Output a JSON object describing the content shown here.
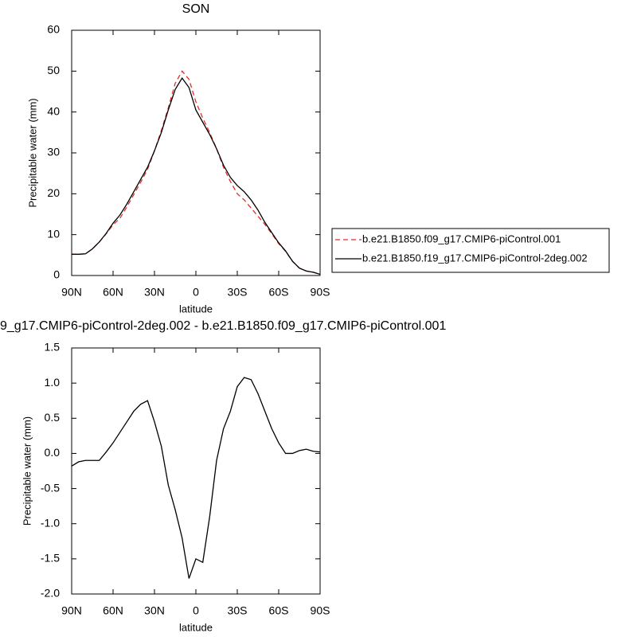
{
  "chart_data": [
    {
      "type": "line",
      "title": "SON",
      "x_label": "latitude",
      "y_label": "Precipitable water (mm)",
      "x": [
        90,
        85,
        80,
        75,
        70,
        65,
        60,
        55,
        50,
        45,
        40,
        35,
        30,
        25,
        20,
        15,
        10,
        5,
        0,
        -5,
        -10,
        -15,
        -20,
        -25,
        -30,
        -35,
        -40,
        -45,
        -50,
        -55,
        -60,
        -65,
        -70,
        -75,
        -80,
        -85,
        -90
      ],
      "series": [
        {
          "name": "b.e21.B1850.f09_g17.CMIP6-piControl.001",
          "color": "#e8282a",
          "line_style": "dashed",
          "values": [
            5.2,
            5.2,
            5.3,
            6.5,
            8.2,
            10.2,
            12.4,
            14.0,
            16.8,
            19.8,
            22.8,
            26.0,
            30.5,
            35.5,
            41.0,
            47.0,
            50.0,
            48.0,
            42.5,
            38.5,
            35.0,
            31.0,
            26.5,
            23.0,
            20.0,
            18.5,
            16.5,
            14.5,
            12.5,
            10.2,
            7.8,
            5.9,
            3.5,
            1.8,
            1.1,
            0.8,
            0.3
          ]
        },
        {
          "name": "b.e21.B1850.f19_g17.CMIP6-piControl-2deg.002",
          "color": "#000000",
          "line_style": "solid",
          "values": [
            5.2,
            5.2,
            5.3,
            6.5,
            8.2,
            10.3,
            12.8,
            14.8,
            17.5,
            20.5,
            23.5,
            26.5,
            30.5,
            35.0,
            40.5,
            45.5,
            48.3,
            46.0,
            40.5,
            37.5,
            34.5,
            31.0,
            27.0,
            24.0,
            22.0,
            20.5,
            18.5,
            16.0,
            13.0,
            10.5,
            8.0,
            6.0,
            3.5,
            1.8,
            1.1,
            0.8,
            0.3
          ]
        }
      ],
      "xlim": [
        90,
        -90
      ],
      "xticks": [
        {
          "value": 90,
          "label": "90N"
        },
        {
          "value": 60,
          "label": "60N"
        },
        {
          "value": 30,
          "label": "30N"
        },
        0,
        {
          "value": -30,
          "label": "30S"
        },
        {
          "value": -60,
          "label": "60S"
        },
        {
          "value": -90,
          "label": "90S"
        }
      ],
      "ylim": [
        0,
        60
      ],
      "yticks": [
        0,
        10,
        20,
        30,
        40,
        50,
        60
      ],
      "legend": "right"
    },
    {
      "type": "line",
      "title": "9_g17.CMIP6-piControl-2deg.002 - b.e21.B1850.f09_g17.CMIP6-piControl.001",
      "x_label": "latitude",
      "y_label": "Precipitable water (mm)",
      "x": [
        90,
        85,
        80,
        75,
        70,
        65,
        60,
        55,
        50,
        45,
        40,
        35,
        30,
        25,
        20,
        15,
        10,
        5,
        0,
        -5,
        -10,
        -15,
        -20,
        -25,
        -30,
        -35,
        -40,
        -45,
        -50,
        -55,
        -60,
        -65,
        -70,
        -75,
        -80,
        -85,
        -90
      ],
      "series": [
        {
          "color": "#000000",
          "line_style": "solid",
          "values": [
            -0.18,
            -0.12,
            -0.1,
            -0.1,
            -0.1,
            0.02,
            0.15,
            0.3,
            0.45,
            0.6,
            0.7,
            0.75,
            0.45,
            0.1,
            -0.45,
            -0.8,
            -1.2,
            -1.78,
            -1.5,
            -1.55,
            -0.9,
            -0.1,
            0.35,
            0.6,
            0.95,
            1.08,
            1.05,
            0.85,
            0.6,
            0.35,
            0.15,
            0.0,
            0.0,
            0.04,
            0.06,
            0.03,
            0.02
          ]
        }
      ],
      "xlim": [
        90,
        -90
      ],
      "xticks": [
        {
          "value": 90,
          "label": "90N"
        },
        {
          "value": 60,
          "label": "60N"
        },
        {
          "value": 30,
          "label": "30N"
        },
        0,
        {
          "value": -30,
          "label": "30S"
        },
        {
          "value": -60,
          "label": "60S"
        },
        {
          "value": -90,
          "label": "90S"
        }
      ],
      "ylim": [
        -2,
        1.5
      ],
      "yticks": [
        {
          "value": -2,
          "label": "-2.0"
        },
        {
          "value": -1.5,
          "label": "-1.5"
        },
        {
          "value": -1,
          "label": "-1.0"
        },
        {
          "value": -0.5,
          "label": "-0.5"
        },
        {
          "value": 0,
          "label": "0.0"
        },
        {
          "value": 0.5,
          "label": "0.5"
        },
        {
          "value": 1,
          "label": "1.0"
        },
        {
          "value": 1.5,
          "label": "1.5"
        }
      ]
    }
  ]
}
